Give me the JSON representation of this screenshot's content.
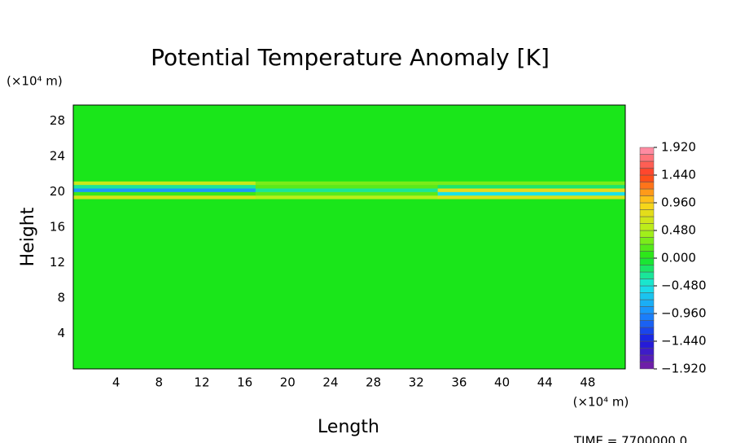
{
  "chart_data": {
    "type": "heatmap",
    "title": "Potential Temperature Anomaly [K]",
    "x_label": "Length",
    "y_label": "Height",
    "x_unit": "(×10⁴ m)",
    "y_unit": "(×10⁴ m)",
    "footer": "TIME = 7700000.0",
    "xlim": [
      0,
      51.5
    ],
    "ylim": [
      0,
      29.8
    ],
    "xticks": [
      4,
      8,
      12,
      16,
      20,
      24,
      28,
      32,
      36,
      40,
      44,
      48
    ],
    "yticks": [
      4,
      8,
      12,
      16,
      20,
      24,
      28
    ],
    "xbins": [
      0,
      17,
      34,
      51.5
    ],
    "ybins": [
      0,
      19.2,
      19.6,
      20.0,
      20.4,
      20.8,
      21.2,
      29.8
    ],
    "z": [
      [
        0,
        0,
        0
      ],
      [
        0.7,
        0.5,
        0.7
      ],
      [
        0.1,
        0.2,
        -0.5
      ],
      [
        -0.9,
        -0.3,
        0.8
      ],
      [
        -0.3,
        0.2,
        -0.2
      ],
      [
        0.6,
        0.3,
        0.3
      ],
      [
        0,
        0,
        0
      ]
    ],
    "colormap": [
      "#7a1fa0",
      "#1a1ae0",
      "#1a8cff",
      "#1ae6e6",
      "#1ae61a",
      "#b4f01a",
      "#ffd21a",
      "#ff3c1a",
      "#ff96b4"
    ],
    "colorlim": [
      -1.92,
      1.92
    ],
    "colorticks": [
      {
        "value": 1.92,
        "label": "1.920"
      },
      {
        "value": 1.44,
        "label": "1.440"
      },
      {
        "value": 0.96,
        "label": "0.960"
      },
      {
        "value": 0.48,
        "label": "0.480"
      },
      {
        "value": 0,
        "label": "0.000"
      },
      {
        "value": -0.48,
        "label": "−0.480"
      },
      {
        "value": -0.96,
        "label": "−0.960"
      },
      {
        "value": -1.44,
        "label": "−1.440"
      },
      {
        "value": -1.92,
        "label": "−1.920"
      }
    ]
  }
}
